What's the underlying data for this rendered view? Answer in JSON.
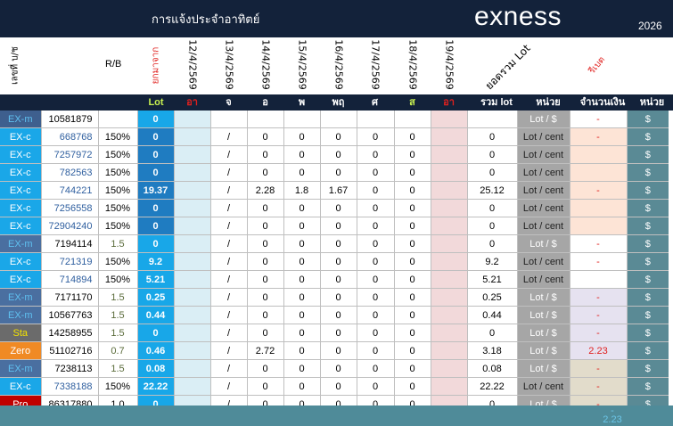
{
  "header": {
    "title": "การแจ้งประจำอาทิตย์",
    "brand": "exness",
    "year": "2026"
  },
  "columns": {
    "account": "เลขที่ บ/ช",
    "rb": "R/B",
    "carry": "ยกมาจาก",
    "total_lot": "ยอดรวม Lot",
    "commission": "รีเบต",
    "dates": [
      "12/4/2569",
      "13/4/2569",
      "14/4/2569",
      "15/4/2569",
      "16/4/2569",
      "17/4/2569",
      "18/4/2569",
      "19/4/2569"
    ]
  },
  "subheader": {
    "lot": "Lot",
    "days": [
      "อา",
      "จ",
      "อ",
      "พ",
      "พฤ",
      "ศ",
      "ส",
      "อา"
    ],
    "sum_lot": "รวม lot",
    "unit": "หน่วย",
    "amount": "จำนวนเงิน",
    "unit2": "หน่วย"
  },
  "colors": {
    "navy": "#13223a",
    "teal": "#5a8a95",
    "lot_dark": "#1f7cc1",
    "lot_light": "#18a7e8",
    "red": "#e0201e"
  },
  "rows": [
    {
      "type": "EX-m",
      "acct": "10581879",
      "rb": "",
      "lot": "0",
      "d": [
        "",
        "",
        "",
        "",
        "",
        "",
        "",
        ""
      ],
      "sum": "",
      "unit": "Lot / $",
      "amount": "-",
      "cur": "$"
    },
    {
      "type": "EX-c",
      "acct": "668768",
      "rb": "150%",
      "lot": "0",
      "d": [
        "",
        "/",
        "0",
        "0",
        "0",
        "0",
        "0",
        ""
      ],
      "sum": "0",
      "unit": "Lot / cent",
      "amount": "-",
      "cur": "$"
    },
    {
      "type": "EX-c",
      "acct": "7257972",
      "rb": "150%",
      "lot": "0",
      "d": [
        "",
        "/",
        "0",
        "0",
        "0",
        "0",
        "0",
        ""
      ],
      "sum": "0",
      "unit": "Lot / cent",
      "amount": "",
      "cur": "$"
    },
    {
      "type": "EX-c",
      "acct": "782563",
      "rb": "150%",
      "lot": "0",
      "d": [
        "",
        "/",
        "0",
        "0",
        "0",
        "0",
        "0",
        ""
      ],
      "sum": "0",
      "unit": "Lot / cent",
      "amount": "",
      "cur": "$"
    },
    {
      "type": "EX-c",
      "acct": "744221",
      "rb": "150%",
      "lot": "19.37",
      "d": [
        "",
        "/",
        "2.28",
        "1.8",
        "1.67",
        "0",
        "0",
        ""
      ],
      "sum": "25.12",
      "unit": "Lot / cent",
      "amount": "-",
      "cur": "$"
    },
    {
      "type": "EX-c",
      "acct": "7256558",
      "rb": "150%",
      "lot": "0",
      "d": [
        "",
        "/",
        "0",
        "0",
        "0",
        "0",
        "0",
        ""
      ],
      "sum": "0",
      "unit": "Lot / cent",
      "amount": "",
      "cur": "$"
    },
    {
      "type": "EX-c",
      "acct": "72904240",
      "rb": "150%",
      "lot": "0",
      "d": [
        "",
        "/",
        "0",
        "0",
        "0",
        "0",
        "0",
        ""
      ],
      "sum": "0",
      "unit": "Lot / cent",
      "amount": "",
      "cur": "$"
    },
    {
      "type": "EX-m",
      "acct": "7194114",
      "rb": "1.5",
      "lot": "0",
      "d": [
        "",
        "/",
        "0",
        "0",
        "0",
        "0",
        "0",
        ""
      ],
      "sum": "0",
      "unit": "Lot / $",
      "amount": "-",
      "cur": "$"
    },
    {
      "type": "EX-c",
      "acct": "721319",
      "rb": "150%",
      "lot": "9.2",
      "d": [
        "",
        "/",
        "0",
        "0",
        "0",
        "0",
        "0",
        ""
      ],
      "sum": "9.2",
      "unit": "Lot / cent",
      "amount": "-",
      "cur": "$"
    },
    {
      "type": "EX-c",
      "acct": "714894",
      "rb": "150%",
      "lot": "5.21",
      "d": [
        "",
        "/",
        "0",
        "0",
        "0",
        "0",
        "0",
        ""
      ],
      "sum": "5.21",
      "unit": "Lot / cent",
      "amount": "",
      "cur": "$"
    },
    {
      "type": "EX-m",
      "acct": "7171170",
      "rb": "1.5",
      "lot": "0.25",
      "d": [
        "",
        "/",
        "0",
        "0",
        "0",
        "0",
        "0",
        ""
      ],
      "sum": "0.25",
      "unit": "Lot / $",
      "amount": "-",
      "cur": "$"
    },
    {
      "type": "EX-m",
      "acct": "10567763",
      "rb": "1.5",
      "lot": "0.44",
      "d": [
        "",
        "/",
        "0",
        "0",
        "0",
        "0",
        "0",
        ""
      ],
      "sum": "0.44",
      "unit": "Lot / $",
      "amount": "-",
      "cur": "$"
    },
    {
      "type": "Sta",
      "acct": "14258955",
      "rb": "1.5",
      "lot": "0",
      "d": [
        "",
        "/",
        "0",
        "0",
        "0",
        "0",
        "0",
        ""
      ],
      "sum": "0",
      "unit": "Lot / $",
      "amount": "-",
      "cur": "$"
    },
    {
      "type": "Zero",
      "acct": "51102716",
      "rb": "0.7",
      "lot": "0.46",
      "d": [
        "",
        "/",
        "2.72",
        "0",
        "0",
        "0",
        "0",
        ""
      ],
      "sum": "3.18",
      "unit": "Lot / $",
      "amount": "2.23",
      "cur": "$"
    },
    {
      "type": "EX-m",
      "acct": "7238113",
      "rb": "1.5",
      "lot": "0.08",
      "d": [
        "",
        "/",
        "0",
        "0",
        "0",
        "0",
        "0",
        ""
      ],
      "sum": "0.08",
      "unit": "Lot / $",
      "amount": "-",
      "cur": "$"
    },
    {
      "type": "EX-c",
      "acct": "7338188",
      "rb": "150%",
      "lot": "22.22",
      "d": [
        "",
        "/",
        "0",
        "0",
        "0",
        "0",
        "0",
        ""
      ],
      "sum": "22.22",
      "unit": "Lot / cent",
      "amount": "-",
      "cur": "$"
    },
    {
      "type": "Pro",
      "acct": "86317880",
      "rb": "1.0",
      "lot": "0",
      "d": [
        "",
        "/",
        "0",
        "0",
        "0",
        "0",
        "0",
        ""
      ],
      "sum": "0",
      "unit": "Lot / $",
      "amount": "-",
      "cur": "$"
    }
  ],
  "footer": {
    "dash": "-",
    "total": "2.23"
  }
}
